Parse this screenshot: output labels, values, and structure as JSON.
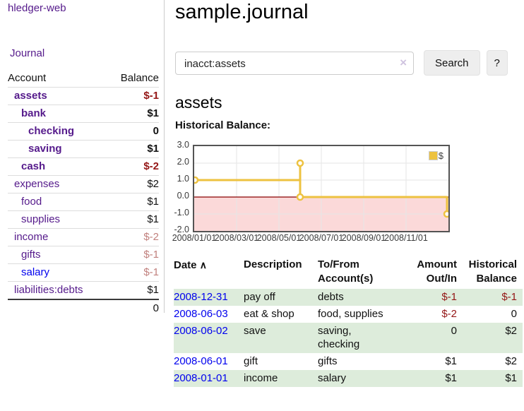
{
  "colors": {
    "link_purple": "#551a8b",
    "link_blue": "#0000ee",
    "negative_strong": "#941616",
    "negative_muted": "#c1807d",
    "row_stripe_green": "#ddecdb",
    "chart_line_gold": "#edc240",
    "chart_negative_region_pink": "#fbd9d9",
    "chart_zero_line": "#8b0000"
  },
  "sidebar": {
    "brand": "hledger-web",
    "nav": {
      "journal": "Journal"
    },
    "table": {
      "account_header": "Account",
      "balance_header": "Balance"
    },
    "rows": [
      {
        "name": "assets",
        "balance": "$-1"
      },
      {
        "name": "bank",
        "balance": "$1"
      },
      {
        "name": "checking",
        "balance": "0"
      },
      {
        "name": "saving",
        "balance": "$1"
      },
      {
        "name": "cash",
        "balance": "$-2"
      },
      {
        "name": "expenses",
        "balance": "$2"
      },
      {
        "name": "food",
        "balance": "$1"
      },
      {
        "name": "supplies",
        "balance": "$1"
      },
      {
        "name": "income",
        "balance": "$-2"
      },
      {
        "name": "gifts",
        "balance": "$-1"
      },
      {
        "name": "salary",
        "balance": "$-1"
      },
      {
        "name": "liabilities:debts",
        "balance": "$1"
      }
    ],
    "total": "0"
  },
  "header": {
    "title": "sample.journal"
  },
  "search": {
    "value": "inacct:assets",
    "clear_icon": "×",
    "search_button": "Search",
    "help_button": "?"
  },
  "account_view": {
    "heading": "assets",
    "section_label": "Historical Balance:"
  },
  "chart_data": {
    "type": "line",
    "step": true,
    "title": "Historical Balance",
    "series": [
      {
        "name": "$",
        "color": "#edc240",
        "points": [
          {
            "x": "2008-01-01",
            "y": 1
          },
          {
            "x": "2008-06-01",
            "y": 2
          },
          {
            "x": "2008-06-02",
            "y": 2
          },
          {
            "x": "2008-06-03",
            "y": 0
          },
          {
            "x": "2008-12-31",
            "y": -1
          }
        ]
      }
    ],
    "ylim": [
      -2,
      3
    ],
    "yticks": [
      "3.0",
      "2.0",
      "1.0",
      "0.0",
      "-1.0",
      "-2.0"
    ],
    "xticks": [
      "2008/01/01",
      "2008/03/01",
      "2008/05/01",
      "2008/07/01",
      "2008/09/01",
      "2008/11/01"
    ],
    "grid": true,
    "negative_region_shaded": true,
    "legend": {
      "label": "$",
      "position": "top-right"
    }
  },
  "register": {
    "headers": {
      "date": "Date",
      "sort_icon": "∧",
      "description": "Description",
      "accounts_line1": "To/From",
      "accounts_line2": "Account(s)",
      "amount_line1": "Amount",
      "amount_line2": "Out/In",
      "balance_line1": "Historical",
      "balance_line2": "Balance"
    },
    "rows": [
      {
        "date": "2008-12-31",
        "description": "pay off",
        "accounts": [
          "debts"
        ],
        "amount": "$-1",
        "balance": "$-1"
      },
      {
        "date": "2008-06-03",
        "description": "eat & shop",
        "accounts": [
          "food, supplies"
        ],
        "amount": "$-2",
        "balance": "0"
      },
      {
        "date": "2008-06-02",
        "description": "save",
        "accounts": [
          "saving,",
          "checking"
        ],
        "amount": "0",
        "balance": "$2"
      },
      {
        "date": "2008-06-01",
        "description": "gift",
        "accounts": [
          "gifts"
        ],
        "amount": "$1",
        "balance": "$2"
      },
      {
        "date": "2008-01-01",
        "description": "income",
        "accounts": [
          "salary"
        ],
        "amount": "$1",
        "balance": "$1"
      }
    ]
  }
}
